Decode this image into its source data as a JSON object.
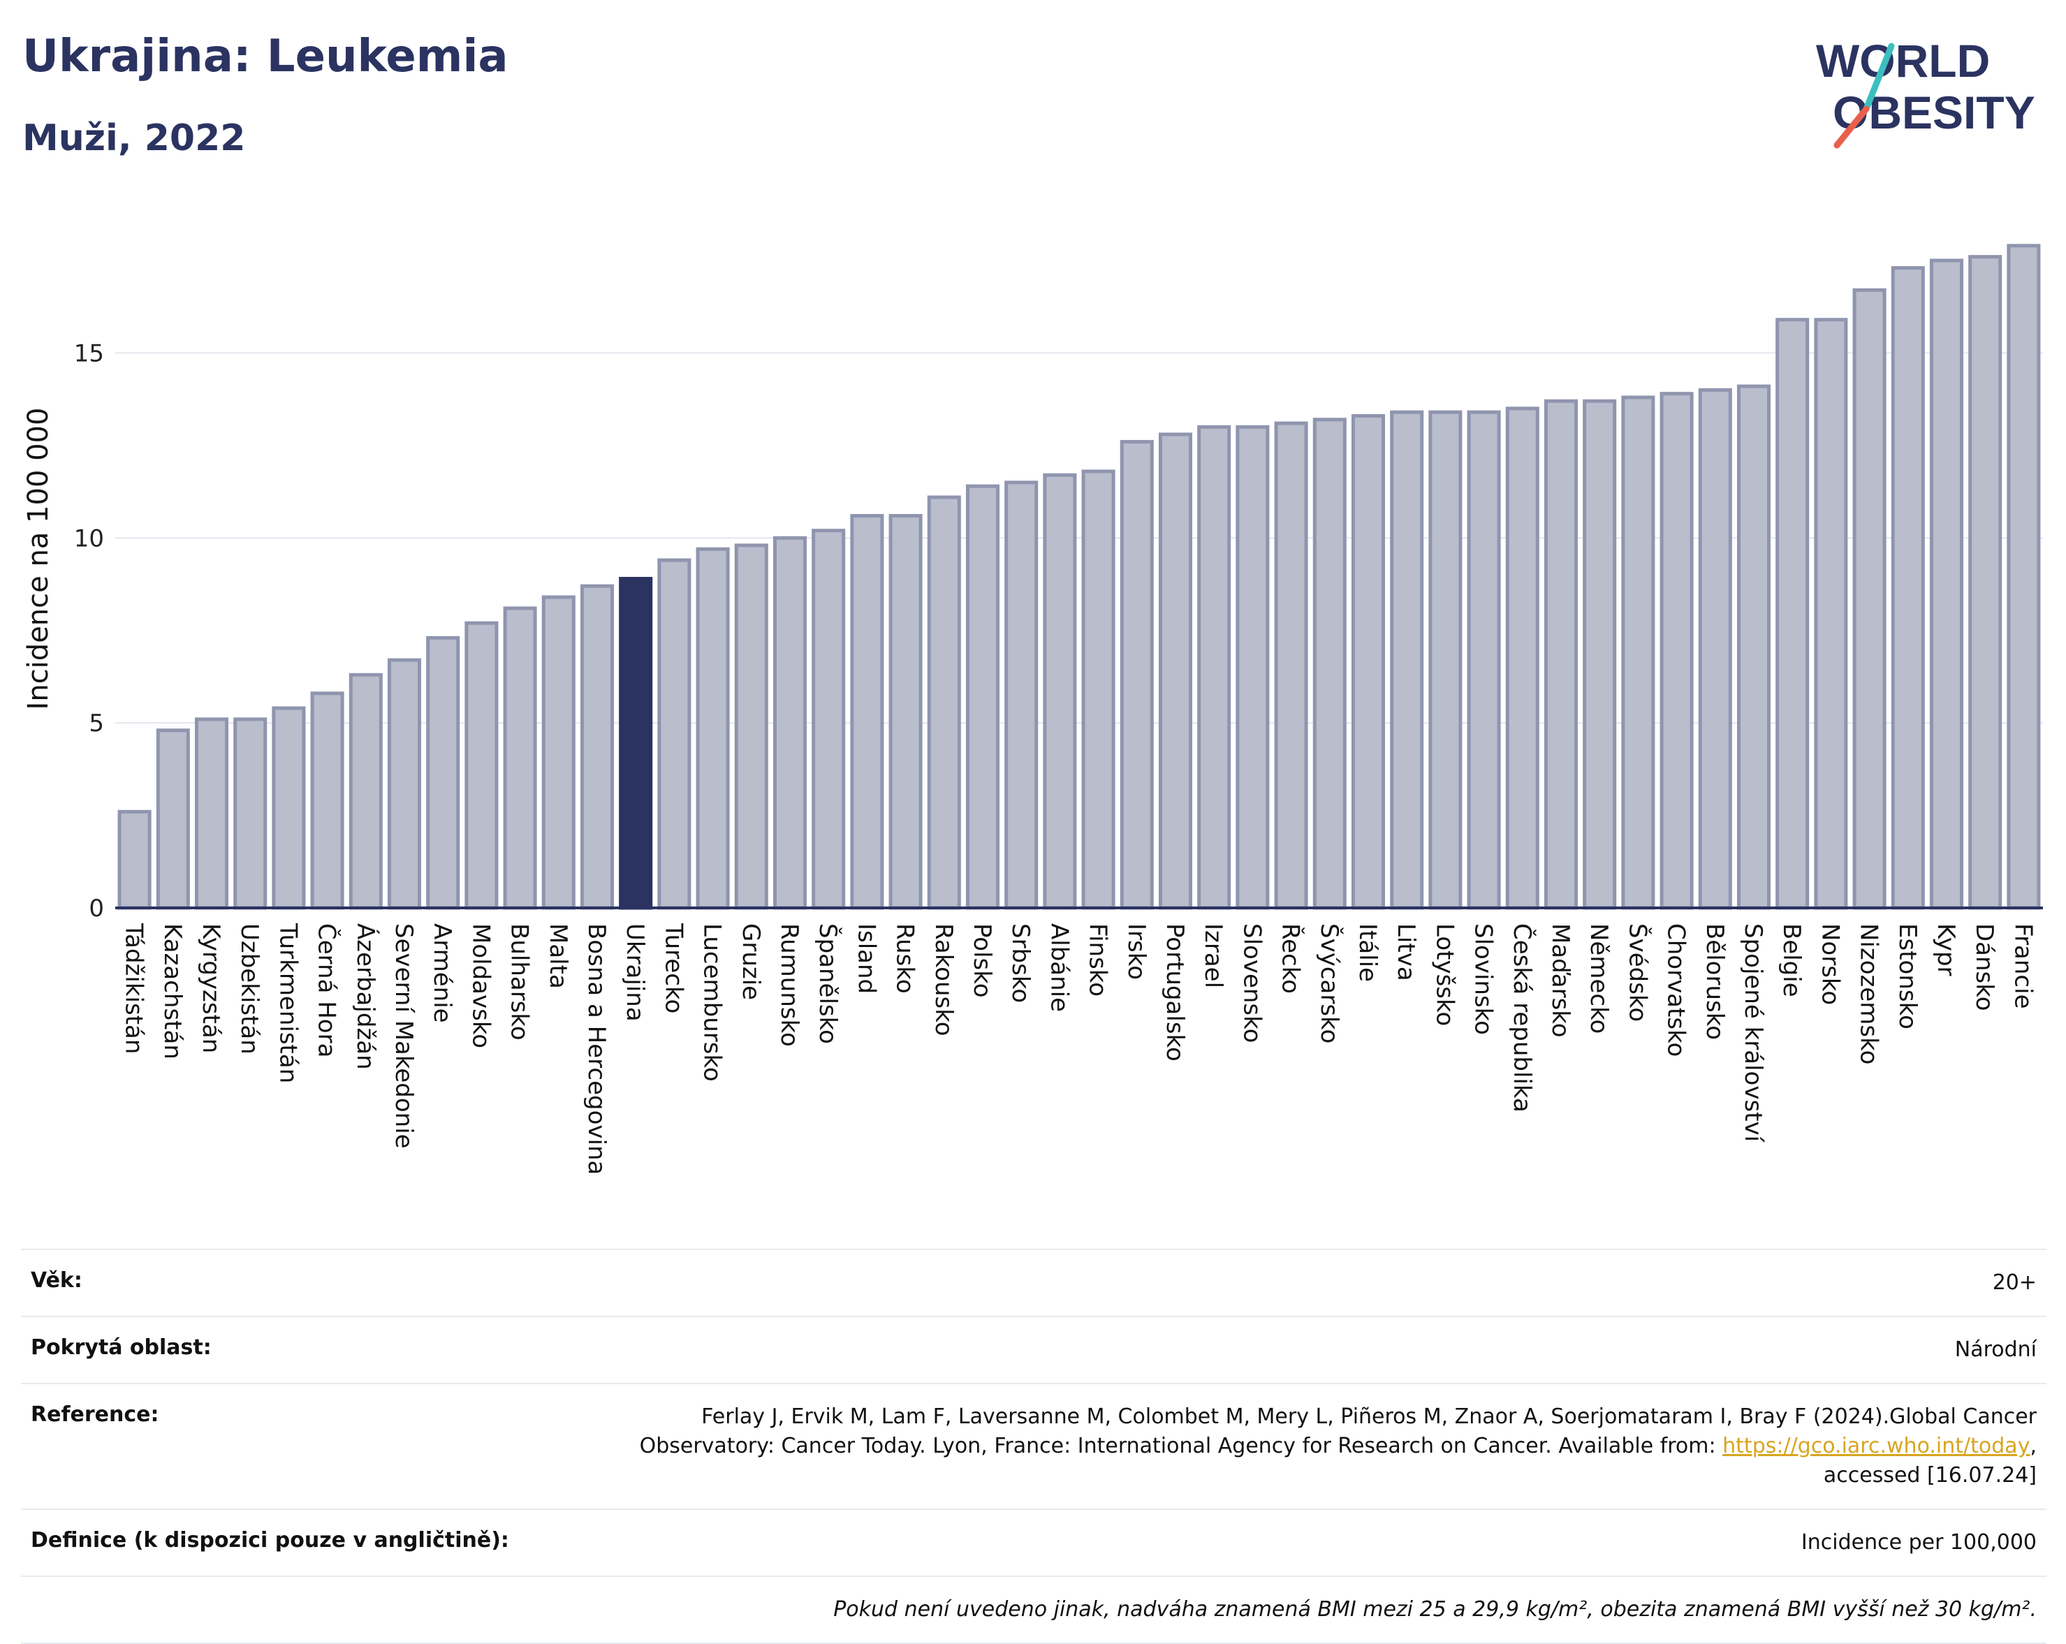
{
  "header": {
    "title": "Ukrajina: Leukemia",
    "subtitle": "Muži, 2022",
    "logo_line1": "WORLD",
    "logo_line2": "OBESITY"
  },
  "colors": {
    "bar": "#b9bdcc",
    "bar_stroke": "#8f95ae",
    "highlight": "#2b3361",
    "text_dark": "#2b3361",
    "logo_accent": "#e8604c",
    "logo_teal": "#3bbfbf"
  },
  "chart_data": {
    "type": "bar",
    "ylabel": "Incidence na 100 000",
    "xlabel": "",
    "ylim": [
      0,
      18.5
    ],
    "yticks": [
      0,
      5,
      10,
      15
    ],
    "highlight": "Ukrajina",
    "categories": [
      "Tádžikistán",
      "Kazachstán",
      "Kyrgyzstán",
      "Uzbekistán",
      "Turkmenistán",
      "Černá Hora",
      "Ázerbajdžán",
      "Severní Makedonie",
      "Arménie",
      "Moldavsko",
      "Bulharsko",
      "Malta",
      "Bosna a Hercegovina",
      "Ukrajina",
      "Turecko",
      "Lucembursko",
      "Gruzie",
      "Rumunsko",
      "Španělsko",
      "Island",
      "Rusko",
      "Rakousko",
      "Polsko",
      "Srbsko",
      "Albánie",
      "Finsko",
      "Irsko",
      "Portugalsko",
      "Izrael",
      "Slovensko",
      "Řecko",
      "Švýcarsko",
      "Itálie",
      "Litva",
      "Lotyšsko",
      "Slovinsko",
      "Česká republika",
      "Maďarsko",
      "Německo",
      "Švédsko",
      "Chorvatsko",
      "Bělorusko",
      "Spojené království",
      "Belgie",
      "Norsko",
      "Nizozemsko",
      "Estonsko",
      "Kypr",
      "Dánsko",
      "Francie"
    ],
    "values": [
      2.6,
      4.8,
      5.1,
      5.1,
      5.4,
      5.8,
      6.3,
      6.7,
      7.3,
      7.7,
      8.1,
      8.4,
      8.7,
      8.9,
      9.4,
      9.7,
      9.8,
      10.0,
      10.2,
      10.6,
      10.6,
      11.1,
      11.4,
      11.5,
      11.7,
      11.8,
      12.6,
      12.8,
      13.0,
      13.0,
      13.1,
      13.2,
      13.3,
      13.4,
      13.4,
      13.4,
      13.5,
      13.7,
      13.7,
      13.8,
      13.9,
      14.0,
      14.1,
      15.9,
      15.9,
      16.7,
      17.3,
      17.5,
      17.6,
      17.9
    ]
  },
  "info": {
    "age_label": "Věk:",
    "age_value": "20+",
    "area_label": "Pokrytá oblast:",
    "area_value": "Národní",
    "ref_label": "Reference:",
    "ref_text_1": "Ferlay J, Ervik M, Lam F, Laversanne M, Colombet M, Mery L, Piñeros M, Znaor A, Soerjomataram I, Bray F (2024).Global Cancer",
    "ref_text_2": "Observatory: Cancer Today. Lyon, France: International Agency for Research on Cancer. Available from: ",
    "ref_link": "https://gco.iarc.who.int/today",
    "ref_text_3": ",",
    "ref_text_4": "accessed [16.07.24]",
    "def_label": "Definice (k dispozici pouze v angličtině):",
    "def_value": "Incidence per 100,000",
    "note": "Pokud není uvedeno jinak, nadváha znamená BMI mezi 25 a 29,9 kg/m², obezita znamená BMI vyšší než 30 kg/m²."
  }
}
